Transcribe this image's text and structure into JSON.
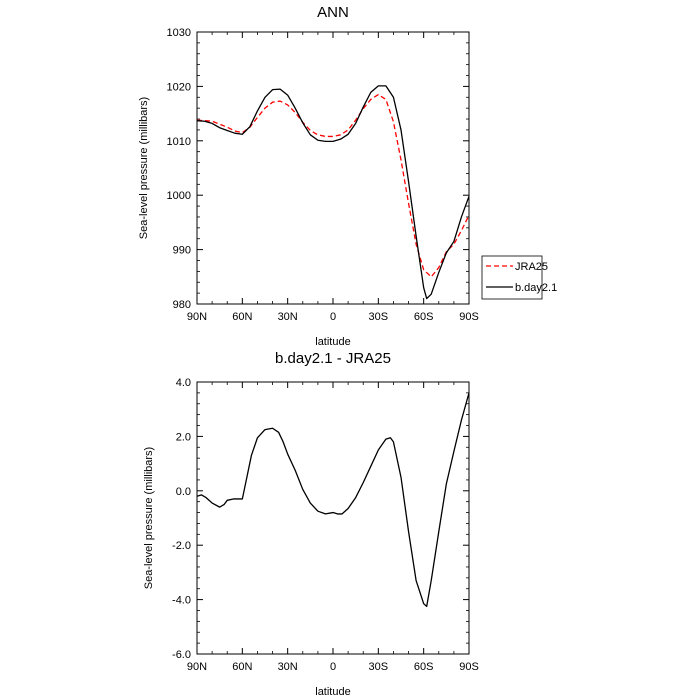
{
  "chart_data": [
    {
      "type": "line",
      "title": "ANN",
      "xlabel": "latitude",
      "ylabel": "Sea-level pressure (millibars)",
      "x_tick_labels": [
        "90N",
        "60N",
        "30N",
        "0",
        "30S",
        "60S",
        "90S"
      ],
      "x_tick_values": [
        90,
        60,
        30,
        0,
        -30,
        -60,
        -90
      ],
      "y_tick_labels": [
        "1030",
        "1020",
        "1010",
        "1000",
        "990",
        "980"
      ],
      "xlim": [
        90,
        -90
      ],
      "ylim": [
        980,
        1030
      ],
      "grid": false,
      "legend_position": "right",
      "series": [
        {
          "name": "JRA25",
          "color": "#ff0000",
          "dash": "dashed",
          "x": [
            90,
            80,
            70,
            65,
            60,
            55,
            50,
            45,
            40,
            35,
            30,
            25,
            20,
            15,
            10,
            5,
            0,
            -5,
            -10,
            -15,
            -20,
            -25,
            -30,
            -35,
            -40,
            -45,
            -50,
            -55,
            -60,
            -65,
            -70,
            -75,
            -80,
            -85,
            -90
          ],
          "y": [
            1013.8,
            1013.6,
            1012.5,
            1011.8,
            1011.5,
            1012.5,
            1014.3,
            1016.0,
            1017.1,
            1017.3,
            1016.6,
            1015.2,
            1013.4,
            1011.9,
            1011.1,
            1010.8,
            1010.8,
            1011.1,
            1012.0,
            1013.8,
            1015.9,
            1017.6,
            1018.5,
            1017.6,
            1013.5,
            1006.5,
            998.5,
            991.0,
            986.3,
            985.0,
            986.7,
            989.6,
            991.0,
            993.5,
            996.3
          ]
        },
        {
          "name": "b.day2.1",
          "color": "#000000",
          "dash": "solid",
          "x": [
            90,
            85,
            80,
            75,
            70,
            65,
            60,
            55,
            50,
            45,
            40,
            35,
            30,
            25,
            20,
            15,
            10,
            5,
            0,
            -5,
            -10,
            -15,
            -20,
            -25,
            -30,
            -35,
            -40,
            -45,
            -50,
            -55,
            -60,
            -62,
            -65,
            -70,
            -75,
            -80,
            -85,
            -90
          ],
          "y": [
            1013.7,
            1013.6,
            1013.2,
            1012.4,
            1011.9,
            1011.4,
            1011.2,
            1012.6,
            1015.5,
            1018.0,
            1019.4,
            1019.5,
            1018.4,
            1016.0,
            1013.3,
            1011.1,
            1010.1,
            1009.9,
            1009.9,
            1010.3,
            1011.2,
            1013.2,
            1016.2,
            1018.9,
            1020.1,
            1020.1,
            1018.0,
            1012.0,
            1002.5,
            992.5,
            983.0,
            981.0,
            981.8,
            985.8,
            989.4,
            991.5,
            996.0,
            999.8
          ]
        }
      ]
    },
    {
      "type": "line",
      "title": "b.day2.1 - JRA25",
      "xlabel": "latitude",
      "ylabel": "Sea-level pressure (millibars)",
      "x_tick_labels": [
        "90N",
        "60N",
        "30N",
        "0",
        "30S",
        "60S",
        "90S"
      ],
      "x_tick_values": [
        90,
        60,
        30,
        0,
        -30,
        -60,
        -90
      ],
      "y_tick_labels": [
        "4.0",
        "2.0",
        "0.0",
        "-2.0",
        "-4.0",
        "-6.0"
      ],
      "xlim": [
        90,
        -90
      ],
      "ylim": [
        -6,
        4
      ],
      "grid": false,
      "series": [
        {
          "color": "#000000",
          "dash": "solid",
          "x": [
            90,
            87,
            84,
            80,
            75,
            72,
            70,
            66,
            60,
            57,
            54,
            50,
            45,
            40,
            36,
            33,
            30,
            25,
            20,
            15,
            10,
            5,
            0,
            -3,
            -6,
            -10,
            -15,
            -20,
            -25,
            -30,
            -35,
            -38,
            -40,
            -45,
            -50,
            -55,
            -60,
            -62,
            -65,
            -70,
            -75,
            -80,
            -85,
            -90
          ],
          "y": [
            -0.2,
            -0.15,
            -0.25,
            -0.45,
            -0.6,
            -0.5,
            -0.35,
            -0.3,
            -0.3,
            0.5,
            1.3,
            1.95,
            2.25,
            2.3,
            2.15,
            1.8,
            1.35,
            0.75,
            0.05,
            -0.45,
            -0.75,
            -0.85,
            -0.8,
            -0.85,
            -0.85,
            -0.65,
            -0.25,
            0.3,
            0.9,
            1.5,
            1.9,
            1.95,
            1.8,
            0.5,
            -1.5,
            -3.3,
            -4.15,
            -4.25,
            -3.3,
            -1.5,
            0.25,
            1.45,
            2.6,
            3.6
          ]
        }
      ]
    }
  ]
}
